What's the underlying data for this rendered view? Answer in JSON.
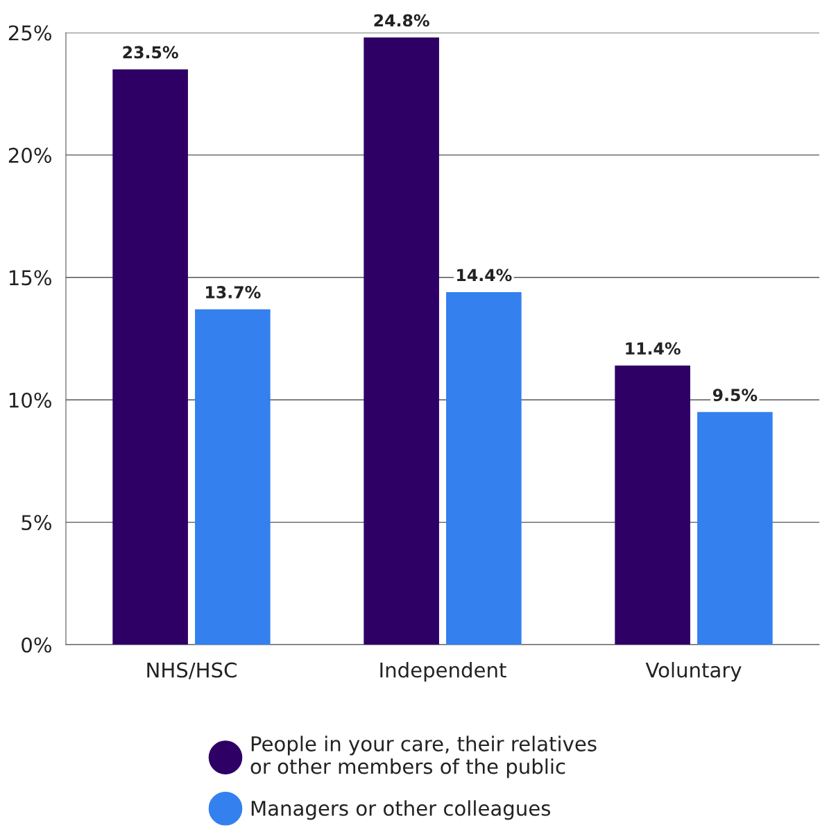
{
  "chart_data": {
    "type": "bar",
    "categories": [
      "NHS/HSC",
      "Independent",
      "Voluntary"
    ],
    "series": [
      {
        "name": "People in your care, their relatives or other members of the public",
        "color": "#2e0066",
        "values": [
          23.5,
          24.8,
          11.4
        ],
        "value_labels": [
          "23.5%",
          "24.8%",
          "11.4%"
        ]
      },
      {
        "name": "Managers or other colleagues",
        "color": "#3380ee",
        "values": [
          13.7,
          14.4,
          9.5
        ],
        "value_labels": [
          "13.7%",
          "14.4%",
          "9.5%"
        ]
      }
    ],
    "ylim": [
      0,
      25
    ],
    "yticks": [
      {
        "value": 0,
        "label": "0%"
      },
      {
        "value": 5,
        "label": "5%"
      },
      {
        "value": 10,
        "label": "10%"
      },
      {
        "value": 15,
        "label": "15%"
      },
      {
        "value": 20,
        "label": "20%"
      },
      {
        "value": 25,
        "label": "25%"
      }
    ],
    "grid": "y",
    "legend": "bottom",
    "marker": "circle"
  }
}
